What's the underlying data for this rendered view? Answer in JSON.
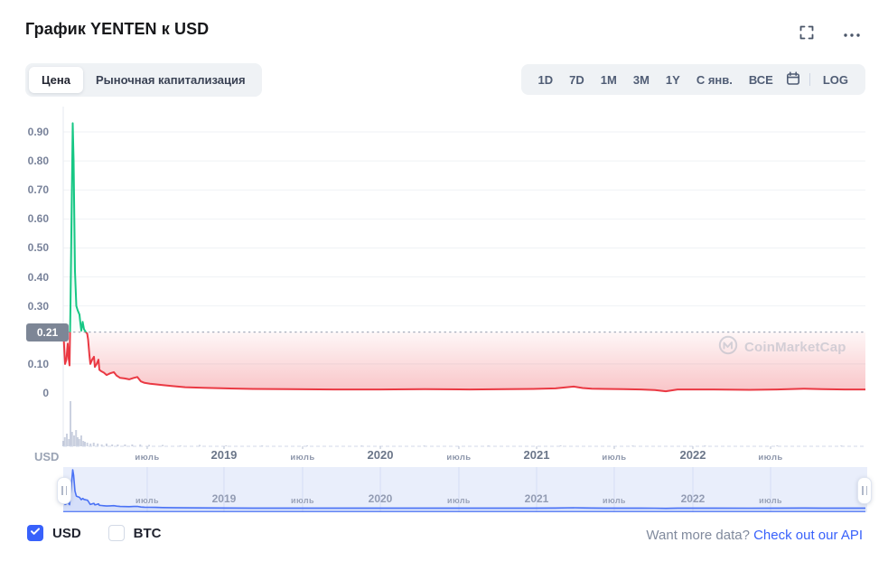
{
  "header": {
    "title": "График YENTEN к USD"
  },
  "tabs": {
    "items": [
      {
        "label": "Цена",
        "active": true
      },
      {
        "label": "Рыночная капитализация",
        "active": false
      }
    ]
  },
  "range_bar": {
    "buttons": [
      "1D",
      "7D",
      "1M",
      "3M",
      "1Y",
      "С янв.",
      "ВСЕ"
    ],
    "log_label": "LOG"
  },
  "watermark": {
    "label": "CoinMarketCap"
  },
  "axis": {
    "currency_label": "USD"
  },
  "footer": {
    "checkboxes": [
      {
        "label": "USD",
        "checked": true
      },
      {
        "label": "BTC",
        "checked": false
      }
    ],
    "more_data_text": "Want more data?",
    "api_link_text": "Check out our API"
  },
  "colors": {
    "green": "#16c784",
    "red": "#ea3943",
    "blue": "#3861fb",
    "grid": "#eff2f5",
    "axis_line": "#e6e9f0",
    "dashed_axis": "#d3daea",
    "dotted_baseline": "#a9b0bf",
    "badge_bg": "#7d8696",
    "volume": "#aab4cc",
    "nav_bg": "#e9eefb",
    "nav_grid": "#d5ddf4",
    "nav_line": "#4a72f5"
  },
  "chart_data": {
    "type": "line",
    "title": "График YENTEN к USD",
    "ylabel": "USD",
    "ylim": [
      0,
      0.96
    ],
    "grid": true,
    "baseline": {
      "value": 0.21,
      "label": "0.21"
    },
    "y_ticks": [
      {
        "value": 0.9,
        "label": "0.90",
        "grid": true
      },
      {
        "value": 0.8,
        "label": "0.80",
        "grid": true
      },
      {
        "value": 0.7,
        "label": "0.70",
        "grid": true
      },
      {
        "value": 0.6,
        "label": "0.60",
        "grid": true
      },
      {
        "value": 0.5,
        "label": "0.50",
        "grid": true
      },
      {
        "value": 0.4,
        "label": "0.40",
        "grid": true
      },
      {
        "value": 0.3,
        "label": "0.30",
        "grid": true
      },
      {
        "value": 0.1,
        "label": "0.10",
        "grid": true
      },
      {
        "value": 0.0,
        "label": "0",
        "grid": false
      }
    ],
    "x_ticks": [
      {
        "t": 0.1047,
        "label": "июль",
        "minor": true
      },
      {
        "t": 0.2004,
        "label": "2019",
        "minor": false
      },
      {
        "t": 0.2984,
        "label": "июль",
        "minor": true
      },
      {
        "t": 0.3953,
        "label": "2020",
        "minor": false
      },
      {
        "t": 0.4932,
        "label": "июль",
        "minor": true
      },
      {
        "t": 0.5901,
        "label": "2021",
        "minor": false
      },
      {
        "t": 0.6869,
        "label": "июль",
        "minor": true
      },
      {
        "t": 0.7849,
        "label": "2022",
        "minor": false
      },
      {
        "t": 0.8818,
        "label": "июль",
        "minor": true
      }
    ],
    "series": [
      {
        "name": "YENTEN/USD",
        "color_above_baseline": "#16c784",
        "color_below_baseline": "#ea3943",
        "points": [
          [
            0.0,
            0.225
          ],
          [
            0.0011,
            0.16
          ],
          [
            0.0023,
            0.1
          ],
          [
            0.0039,
            0.115
          ],
          [
            0.0056,
            0.17
          ],
          [
            0.0068,
            0.12
          ],
          [
            0.0079,
            0.095
          ],
          [
            0.009,
            0.3
          ],
          [
            0.0107,
            0.68
          ],
          [
            0.0118,
            0.93
          ],
          [
            0.0129,
            0.8
          ],
          [
            0.0146,
            0.42
          ],
          [
            0.0163,
            0.3
          ],
          [
            0.018,
            0.285
          ],
          [
            0.0203,
            0.27
          ],
          [
            0.0214,
            0.24
          ],
          [
            0.0225,
            0.215
          ],
          [
            0.0242,
            0.245
          ],
          [
            0.0259,
            0.22
          ],
          [
            0.0282,
            0.21
          ],
          [
            0.0298,
            0.205
          ],
          [
            0.031,
            0.185
          ],
          [
            0.0327,
            0.13
          ],
          [
            0.0338,
            0.1
          ],
          [
            0.036,
            0.115
          ],
          [
            0.0383,
            0.125
          ],
          [
            0.0394,
            0.09
          ],
          [
            0.0417,
            0.1
          ],
          [
            0.0439,
            0.115
          ],
          [
            0.045,
            0.08
          ],
          [
            0.0473,
            0.075
          ],
          [
            0.0507,
            0.07
          ],
          [
            0.0541,
            0.062
          ],
          [
            0.0586,
            0.068
          ],
          [
            0.0631,
            0.072
          ],
          [
            0.0664,
            0.06
          ],
          [
            0.0709,
            0.052
          ],
          [
            0.0766,
            0.05
          ],
          [
            0.0822,
            0.047
          ],
          [
            0.0878,
            0.052
          ],
          [
            0.0923,
            0.055
          ],
          [
            0.0968,
            0.04
          ],
          [
            0.1014,
            0.035
          ],
          [
            0.1081,
            0.032
          ],
          [
            0.1149,
            0.03
          ],
          [
            0.1239,
            0.027
          ],
          [
            0.1351,
            0.024
          ],
          [
            0.152,
            0.02
          ],
          [
            0.1745,
            0.018
          ],
          [
            0.2027,
            0.016
          ],
          [
            0.2365,
            0.014
          ],
          [
            0.2815,
            0.013
          ],
          [
            0.3378,
            0.012
          ],
          [
            0.3941,
            0.012
          ],
          [
            0.4505,
            0.013
          ],
          [
            0.5068,
            0.012
          ],
          [
            0.5518,
            0.013
          ],
          [
            0.5856,
            0.014
          ],
          [
            0.6137,
            0.016
          ],
          [
            0.6363,
            0.022
          ],
          [
            0.6475,
            0.017
          ],
          [
            0.6588,
            0.015
          ],
          [
            0.6757,
            0.014
          ],
          [
            0.6982,
            0.013
          ],
          [
            0.7207,
            0.012
          ],
          [
            0.7376,
            0.01
          ],
          [
            0.7511,
            0.006
          ],
          [
            0.7658,
            0.012
          ],
          [
            0.8108,
            0.012
          ],
          [
            0.8559,
            0.011
          ],
          [
            0.8896,
            0.012
          ],
          [
            0.9234,
            0.015
          ],
          [
            0.9459,
            0.013
          ],
          [
            0.9741,
            0.012
          ],
          [
            1.0,
            0.012
          ]
        ]
      }
    ],
    "volume_bars": [
      [
        0.0,
        6
      ],
      [
        0.002,
        10
      ],
      [
        0.0045,
        14
      ],
      [
        0.007,
        8
      ],
      [
        0.009,
        50
      ],
      [
        0.011,
        16
      ],
      [
        0.0135,
        12
      ],
      [
        0.016,
        18
      ],
      [
        0.018,
        10
      ],
      [
        0.02,
        8
      ],
      [
        0.0225,
        12
      ],
      [
        0.025,
        6
      ],
      [
        0.027,
        5
      ],
      [
        0.03,
        4
      ],
      [
        0.034,
        3
      ],
      [
        0.038,
        4
      ],
      [
        0.043,
        3
      ],
      [
        0.048,
        2
      ],
      [
        0.054,
        3
      ],
      [
        0.061,
        2
      ],
      [
        0.068,
        2
      ],
      [
        0.077,
        2
      ],
      [
        0.086,
        2
      ],
      [
        0.096,
        2
      ],
      [
        0.107,
        1.5
      ],
      [
        0.124,
        1.5
      ],
      [
        0.146,
        1
      ],
      [
        0.17,
        1.5
      ],
      [
        0.203,
        1
      ],
      [
        0.248,
        1
      ],
      [
        0.304,
        1
      ],
      [
        0.372,
        1
      ],
      [
        0.45,
        1
      ],
      [
        0.53,
        1
      ],
      [
        0.62,
        1
      ],
      [
        0.71,
        1
      ],
      [
        0.8,
        1
      ],
      [
        0.89,
        1
      ],
      [
        0.97,
        1
      ]
    ],
    "navigator": {
      "x_ticks_same_as_main": true
    }
  }
}
